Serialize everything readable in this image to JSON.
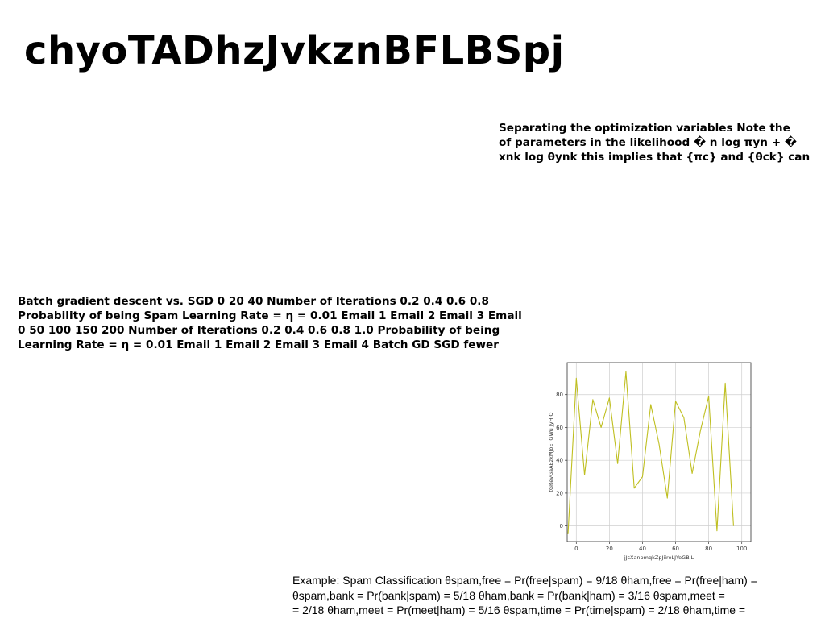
{
  "page": {
    "title": "chyoTADhzJvkznBFLBSpj",
    "text_right": "Separating the optimization variables Note the\nof parameters in the likelihood � n log πyn + �\nxnk log θynk this implies that {πc} and {θck} can",
    "text_left": "Batch gradient descent vs. SGD 0 20 40 Number of Iterations 0.2 0.4 0.6 0.8\nProbability of being Spam Learning Rate = η = 0.01 Email 1 Email 2 Email 3 Email\n0 50 100 150 200 Number of Iterations 0.2 0.4 0.6 0.8 1.0 Probability of being\nLearning Rate = η = 0.01 Email 1 Email 2 Email 3 Email 4 Batch GD SGD fewer",
    "text_bottom": "Example: Spam Classification θspam,free = Pr(free|spam) = 9/18 θham,free = Pr(free|ham) =\nθspam,bank = Pr(bank|spam) = 5/18 θham,bank = Pr(bank|ham) = 3/16 θspam,meet =\n= 2/18 θham,meet = Pr(meet|ham) = 5/16 θspam,time = Pr(time|spam) = 2/18 θham,time ="
  },
  "chart_data": {
    "type": "line",
    "xlabel": "jJsXanpmqkZpJiireLJYeGBiL",
    "ylabel": "tGRevGaAEzkMJoETGWu JyHIQ",
    "xlim": [
      -5.5,
      105.5
    ],
    "ylim": [
      -9.5,
      99.5
    ],
    "x_ticks": [
      0,
      20,
      40,
      60,
      80,
      100
    ],
    "y_ticks": [
      0,
      20,
      40,
      60,
      80
    ],
    "grid": true,
    "legend": "none",
    "series": [
      {
        "color": "#bfbf20",
        "x": [
          -5,
          0,
          5,
          10,
          15,
          20,
          25,
          30,
          35,
          40,
          45,
          50,
          55,
          60,
          65,
          70,
          75,
          80,
          85,
          90,
          95,
          100
        ],
        "y": [
          -5,
          90,
          31,
          77,
          60,
          78,
          38,
          94,
          23,
          30,
          74,
          50,
          17,
          76,
          66,
          32,
          58,
          79,
          -3,
          87,
          0,
          0
        ]
      }
    ]
  }
}
